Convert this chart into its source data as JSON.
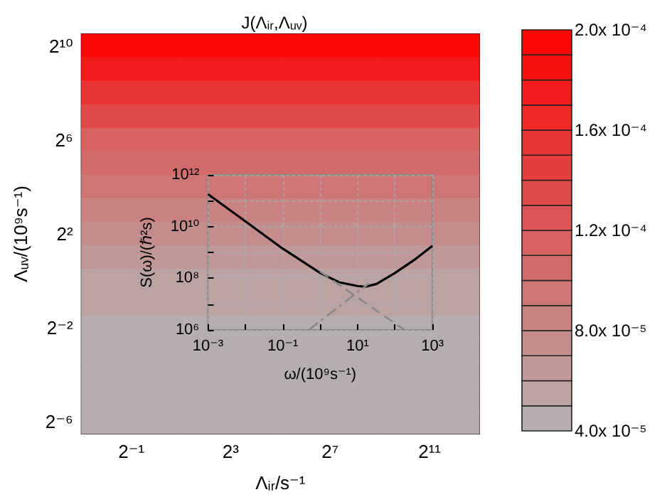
{
  "chart_data": [
    {
      "type": "heatmap",
      "title": "J(Λᵢᵣ,Λᵤᵥ)",
      "xlabel": "Λᵢᵣ/s⁻¹",
      "ylabel": "Λᵤᵥ/(10⁹s⁻¹)",
      "categories": [
        "2⁻¹",
        "2³",
        "2⁷",
        "2¹¹"
      ],
      "y_categories": [
        "2¹⁰",
        null,
        null,
        null,
        "2⁶",
        null,
        null,
        null,
        "2²",
        null,
        null,
        null,
        "2⁻²",
        null,
        null,
        null,
        "2⁻⁶"
      ],
      "cells": [
        [
          0.000195,
          0.000195,
          0.000195,
          0.000195
        ],
        [
          0.000175,
          0.000175,
          0.000175,
          0.000175
        ],
        [
          0.000155,
          0.000155,
          0.000155,
          0.000155
        ],
        [
          0.000135,
          0.000135,
          0.000135,
          0.000135
        ],
        [
          0.000115,
          0.000115,
          0.000115,
          0.000115
        ],
        [
          0.000105,
          0.000105,
          0.000105,
          0.000105
        ],
        [
          9.5e-05,
          9.5e-05,
          9.5e-05,
          9.5e-05
        ],
        [
          8.5e-05,
          8.5e-05,
          8.5e-05,
          8.5e-05
        ],
        [
          7.5e-05,
          7.5e-05,
          7.5e-05,
          7.5e-05
        ],
        [
          6.5e-05,
          6.5e-05,
          6.5e-05,
          6.5e-05
        ],
        [
          5.5e-05,
          5.5e-05,
          5.5e-05,
          5.5e-05
        ],
        [
          5.5e-05,
          5.5e-05,
          5.5e-05,
          5.5e-05
        ],
        [
          4.5e-05,
          4.5e-05,
          4.5e-05,
          4.5e-05
        ],
        [
          4.5e-05,
          4.5e-05,
          4.5e-05,
          4.5e-05
        ],
        [
          4.5e-05,
          4.5e-05,
          4.5e-05,
          4.5e-05
        ],
        [
          4.5e-05,
          4.5e-05,
          4.5e-05,
          4.5e-05
        ],
        [
          4.5e-05,
          4.5e-05,
          4.5e-05,
          4.5e-05
        ]
      ],
      "clim": [
        4e-05,
        0.0002
      ],
      "cticks": [
        {
          "value": 4e-05,
          "label": "4.0x 10⁻⁵"
        },
        {
          "value": 8e-05,
          "label": "8.0x 10⁻⁵"
        },
        {
          "value": 0.00012,
          "label": "1.2x 10⁻⁴"
        },
        {
          "value": 0.00016,
          "label": "1.6x 10⁻⁴"
        },
        {
          "value": 0.0002,
          "label": "2.0x 10⁻⁴"
        }
      ]
    },
    {
      "type": "line",
      "xlabel": "ω/(10⁹s⁻¹)",
      "ylabel": "S(ω)/(ℏ²s)",
      "log": "xy",
      "grid": true,
      "xlim": [
        0.001,
        1000
      ],
      "ylim": [
        1000000,
        1000000000000
      ],
      "xticks": [
        {
          "value": 0.001,
          "label": "10⁻³"
        },
        {
          "value": 0.01,
          "label": null
        },
        {
          "value": 0.1,
          "label": "10⁻¹"
        },
        {
          "value": 1,
          "label": null
        },
        {
          "value": 10,
          "label": "10¹"
        },
        {
          "value": 100,
          "label": null
        },
        {
          "value": 1000,
          "label": "10³"
        }
      ],
      "yticks": [
        {
          "value": 1000000,
          "label": "10⁶"
        },
        {
          "value": 10000000,
          "label": null
        },
        {
          "value": 100000000,
          "label": "10⁸"
        },
        {
          "value": 1000000000,
          "label": null
        },
        {
          "value": 10000000000,
          "label": "10¹⁰"
        },
        {
          "value": 100000000000,
          "label": null
        },
        {
          "value": 1000000000000,
          "label": "10¹²"
        }
      ],
      "series": [
        {
          "color": "#000000",
          "line_style": "solid",
          "x": [
            0.001,
            0.01,
            0.1,
            1,
            3.2,
            10,
            16,
            32,
            100,
            320,
            1000
          ],
          "values": [
            180000000000,
            16000000000,
            1400000000,
            160000000,
            70000000,
            50000000,
            47000000,
            60000000,
            160000000,
            500000000,
            1800000000
          ]
        },
        {
          "color": "#888888",
          "line_style": "dashed",
          "x": [
            1,
            180
          ],
          "values": [
            180000000,
            1000000
          ]
        },
        {
          "color": "#888888",
          "line_style": "dashdot",
          "x": [
            0.5,
            20
          ],
          "values": [
            1000000,
            63000000
          ]
        }
      ]
    }
  ]
}
